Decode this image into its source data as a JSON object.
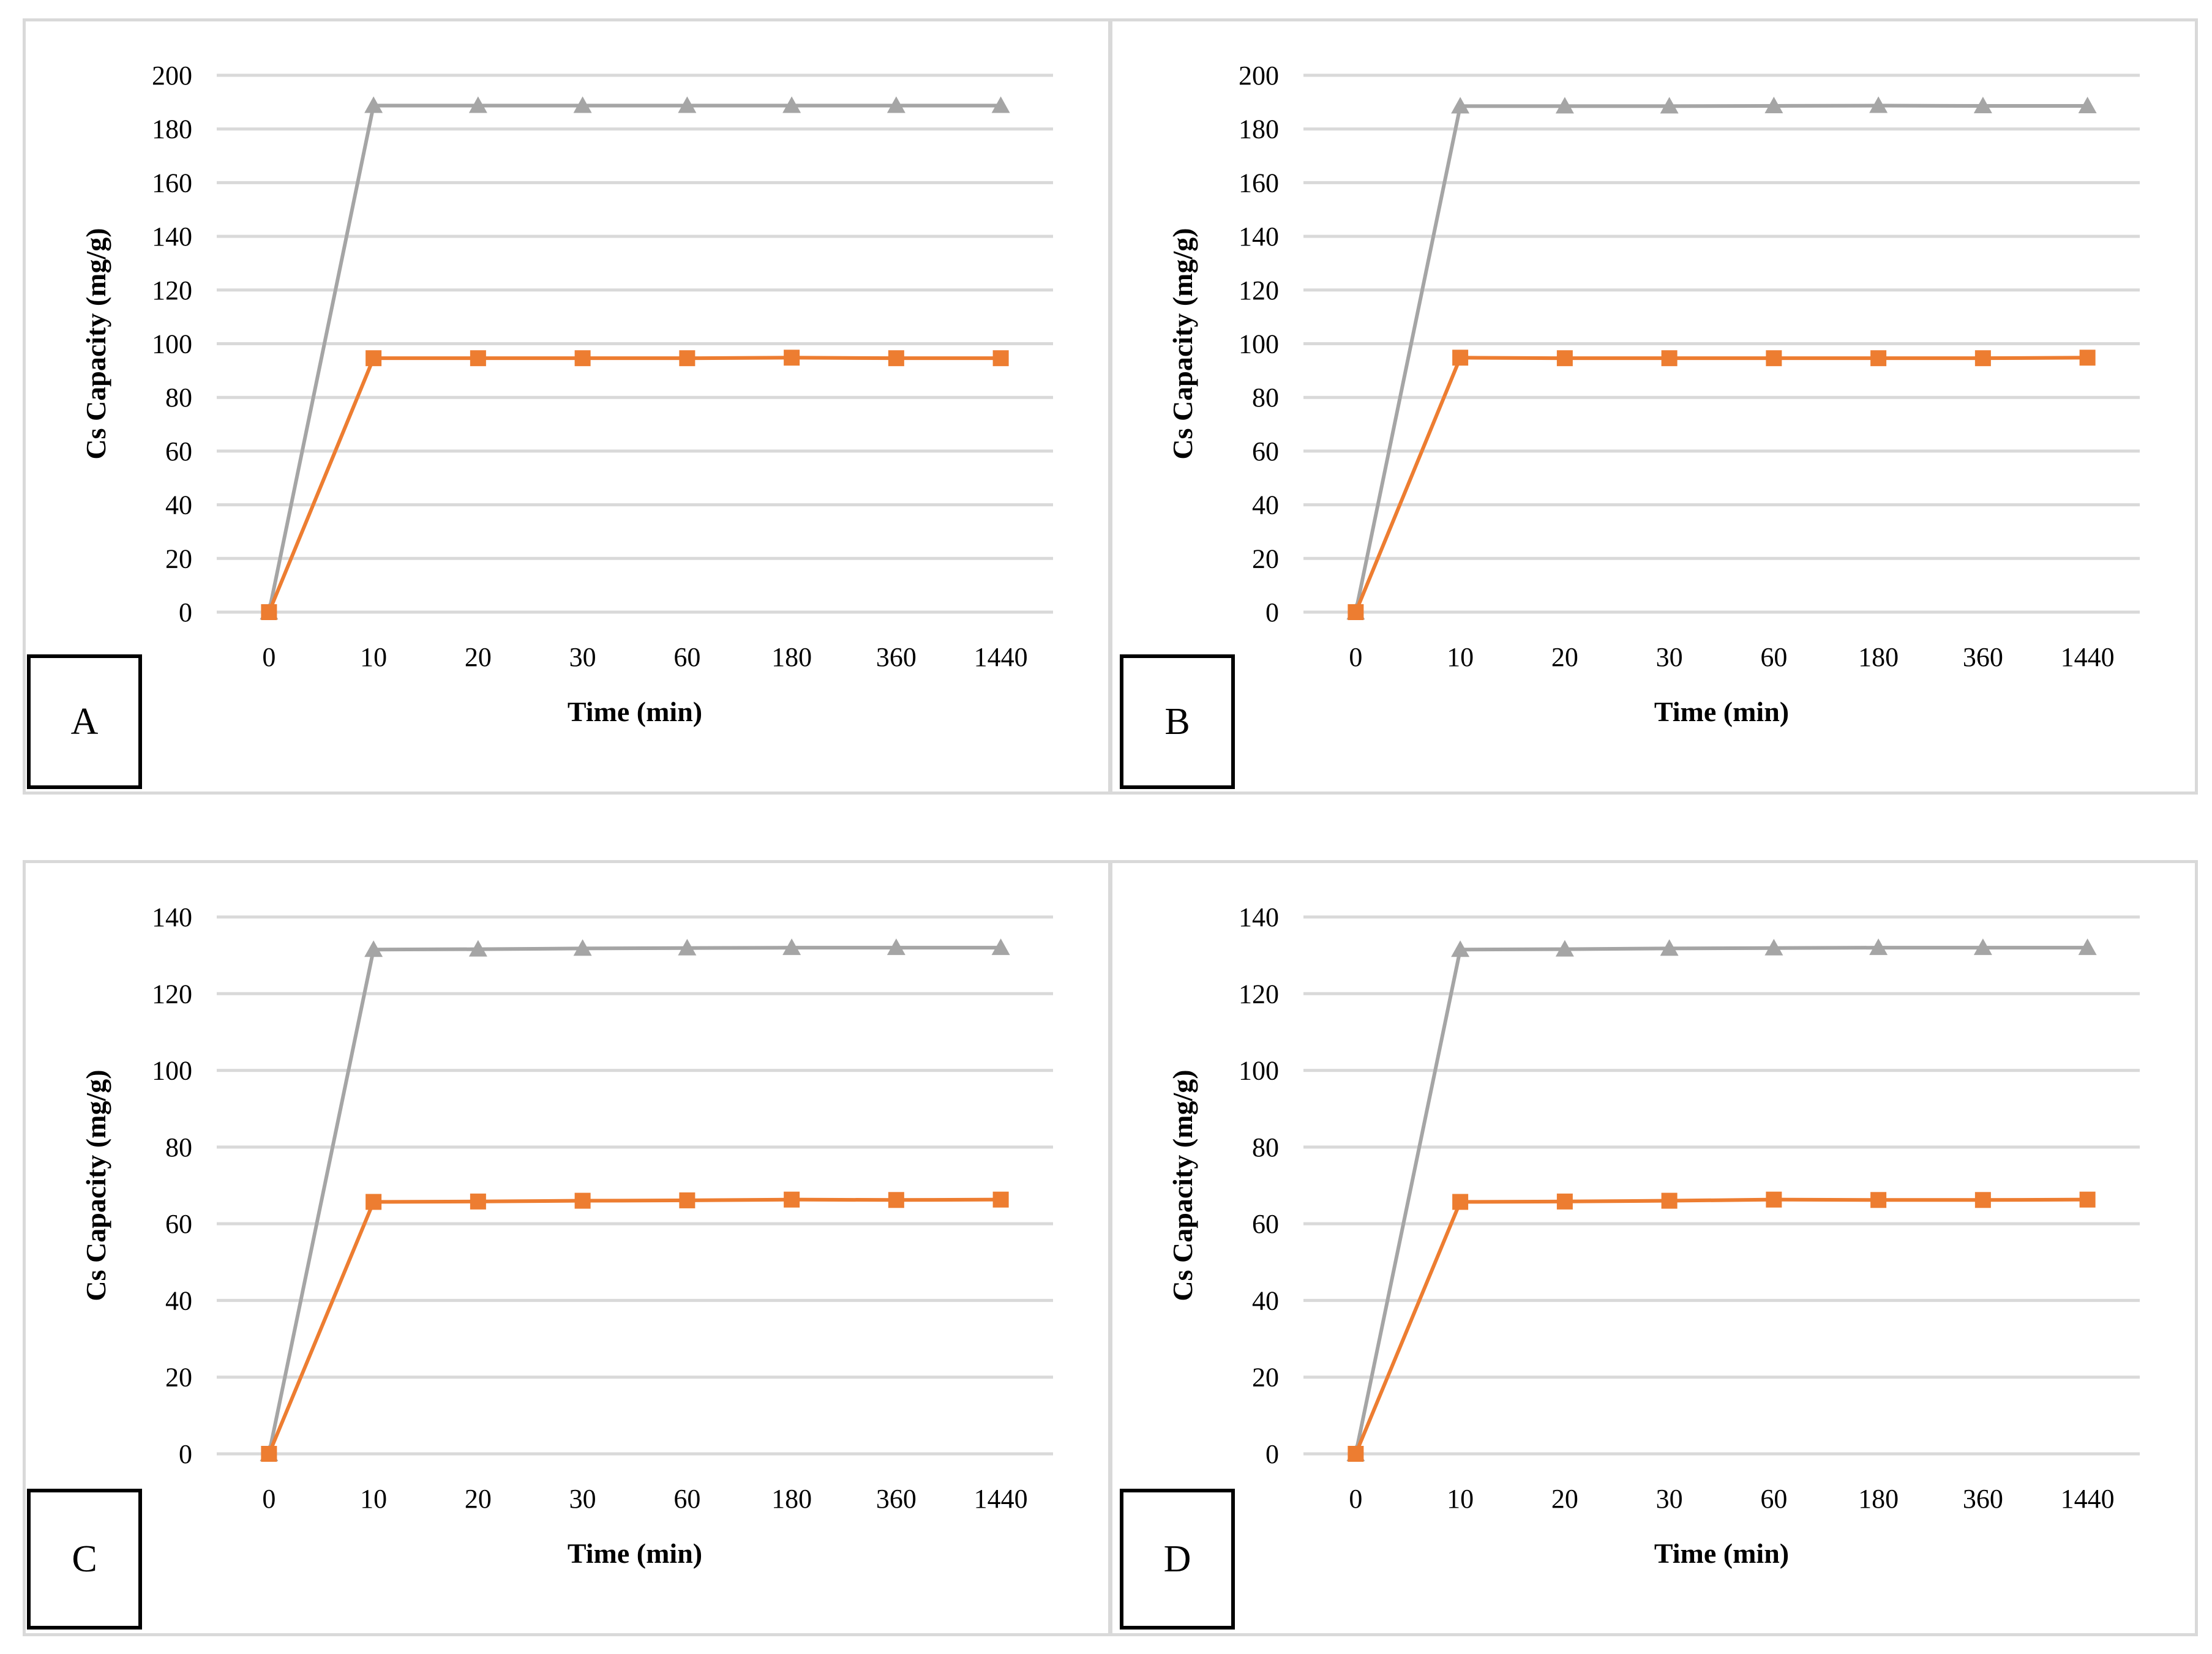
{
  "colors": {
    "series1": "#a5a5a5",
    "series2": "#ed7d31",
    "grid": "#d9d9d9",
    "border": "#d9d9d9"
  },
  "chart_data": [
    {
      "panel": "A",
      "type": "line",
      "categories": [
        "0",
        "10",
        "20",
        "30",
        "60",
        "180",
        "360",
        "1440"
      ],
      "xlabel": "Time (min)",
      "ylabel": "Cs Capacity (mg/g)",
      "ylim": [
        0,
        200
      ],
      "yticks": [
        0,
        20,
        40,
        60,
        80,
        100,
        120,
        140,
        160,
        180,
        200
      ],
      "series": [
        {
          "name": "series-gray",
          "marker": "triangle",
          "values": [
            0,
            188.7,
            188.7,
            188.7,
            188.7,
            188.7,
            188.7,
            188.7
          ]
        },
        {
          "name": "series-orange",
          "marker": "square",
          "values": [
            0,
            94.6,
            94.6,
            94.6,
            94.6,
            94.8,
            94.6,
            94.6
          ]
        }
      ]
    },
    {
      "panel": "B",
      "type": "line",
      "categories": [
        "0",
        "10",
        "20",
        "30",
        "60",
        "180",
        "360",
        "1440"
      ],
      "xlabel": "Time (min)",
      "ylabel": "Cs Capacity (mg/g)",
      "ylim": [
        0,
        200
      ],
      "yticks": [
        0,
        20,
        40,
        60,
        80,
        100,
        120,
        140,
        160,
        180,
        200
      ],
      "series": [
        {
          "name": "series-gray",
          "marker": "triangle",
          "values": [
            0,
            188.5,
            188.5,
            188.5,
            188.6,
            188.7,
            188.6,
            188.6
          ]
        },
        {
          "name": "series-orange",
          "marker": "square",
          "values": [
            0,
            94.8,
            94.6,
            94.6,
            94.6,
            94.6,
            94.6,
            94.8
          ]
        }
      ]
    },
    {
      "panel": "C",
      "type": "line",
      "categories": [
        "0",
        "10",
        "20",
        "30",
        "60",
        "180",
        "360",
        "1440"
      ],
      "xlabel": "Time (min)",
      "ylabel": "Cs Capacity (mg/g)",
      "ylim": [
        0,
        140
      ],
      "yticks": [
        0,
        20,
        40,
        60,
        80,
        100,
        120,
        140
      ],
      "series": [
        {
          "name": "series-gray",
          "marker": "triangle",
          "values": [
            0,
            131.5,
            131.6,
            131.8,
            131.9,
            132.0,
            132.0,
            132.0
          ]
        },
        {
          "name": "series-orange",
          "marker": "square",
          "values": [
            0,
            65.7,
            65.8,
            66.0,
            66.1,
            66.3,
            66.2,
            66.3
          ]
        }
      ]
    },
    {
      "panel": "D",
      "type": "line",
      "categories": [
        "0",
        "10",
        "20",
        "30",
        "60",
        "180",
        "360",
        "1440"
      ],
      "xlabel": "Time (min)",
      "ylabel": "Cs Capacity (mg/g)",
      "ylim": [
        0,
        140
      ],
      "yticks": [
        0,
        20,
        40,
        60,
        80,
        100,
        120,
        140
      ],
      "series": [
        {
          "name": "series-gray",
          "marker": "triangle",
          "values": [
            0,
            131.5,
            131.6,
            131.8,
            131.9,
            132.0,
            132.0,
            132.0
          ]
        },
        {
          "name": "series-orange",
          "marker": "square",
          "values": [
            0,
            65.7,
            65.8,
            66.0,
            66.3,
            66.2,
            66.2,
            66.3
          ]
        }
      ]
    }
  ]
}
